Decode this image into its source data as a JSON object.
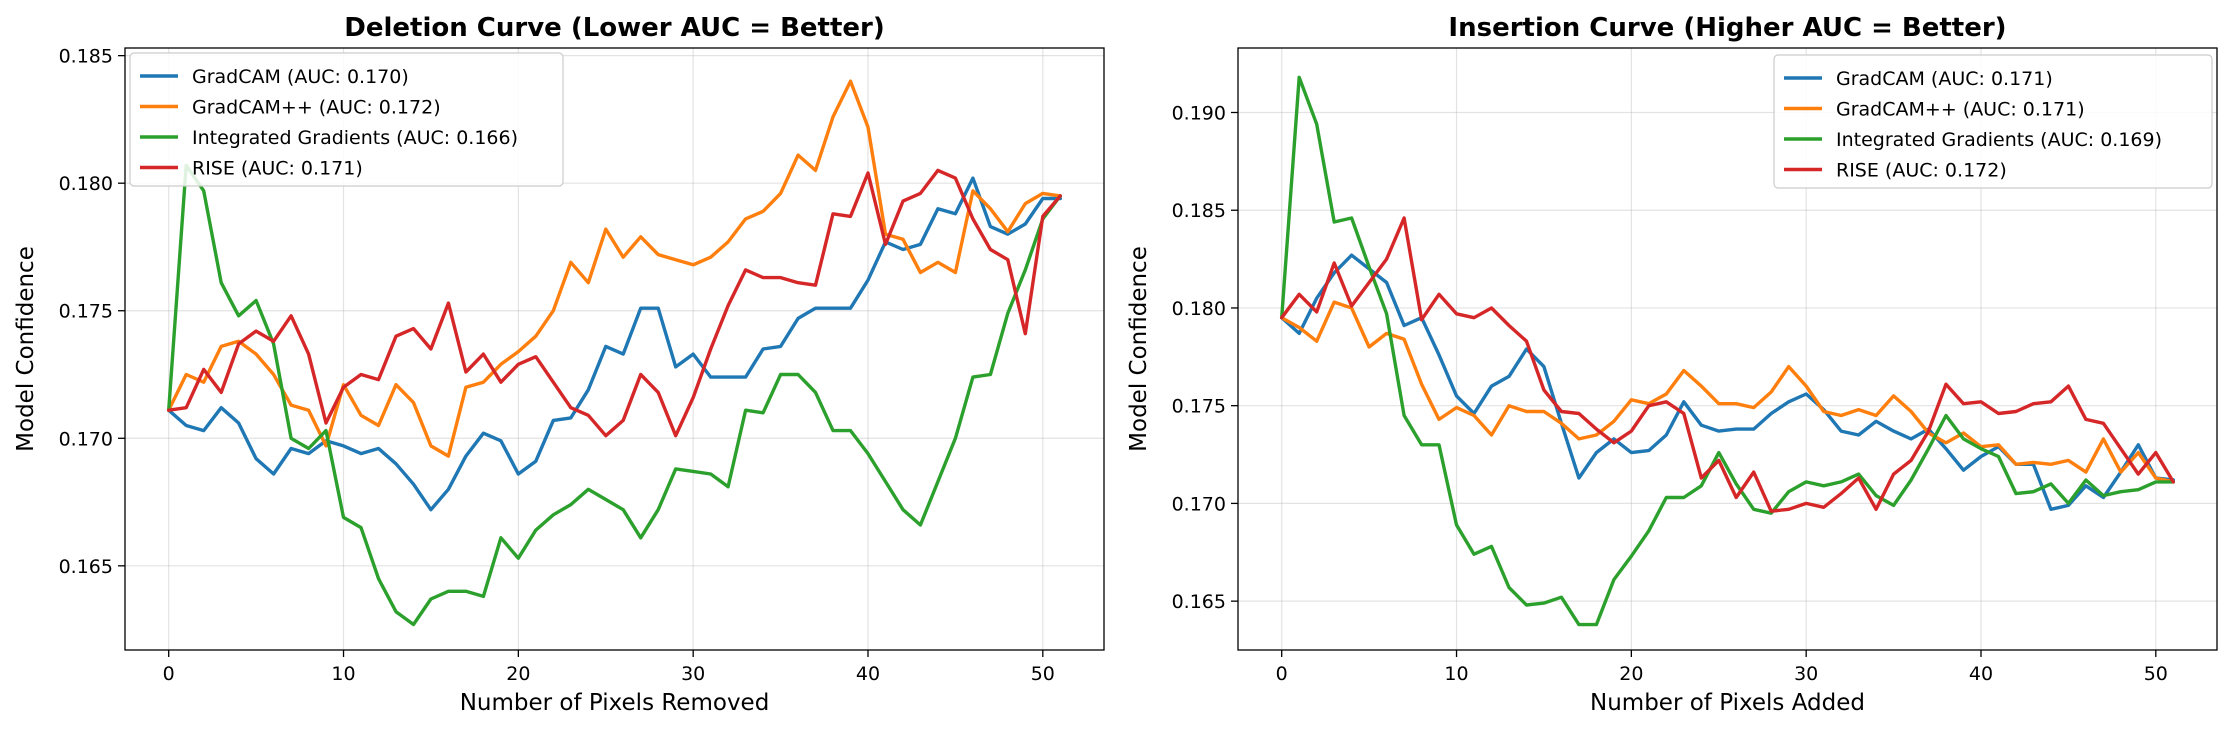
{
  "chart_data": [
    {
      "type": "line",
      "title": "Deletion Curve (Lower AUC = Better)",
      "xlabel": "Number of Pixels Removed",
      "ylabel": "Model Confidence",
      "xlim": [
        -2.5,
        53.5
      ],
      "ylim": [
        0.1617,
        0.1853
      ],
      "xticks": [
        0,
        10,
        20,
        30,
        40,
        50
      ],
      "yticks": [
        0.165,
        0.17,
        0.175,
        0.18,
        0.185
      ],
      "ytick_labels": [
        "0.165",
        "0.170",
        "0.175",
        "0.180",
        "0.185"
      ],
      "grid": true,
      "legend_position": "top-left",
      "x": [
        0,
        1,
        2,
        3,
        4,
        5,
        6,
        7,
        8,
        9,
        10,
        11,
        12,
        13,
        14,
        15,
        16,
        17,
        18,
        19,
        20,
        21,
        22,
        23,
        24,
        25,
        26,
        27,
        28,
        29,
        30,
        31,
        32,
        33,
        34,
        35,
        36,
        37,
        38,
        39,
        40,
        41,
        42,
        43,
        44,
        45,
        46,
        47,
        48,
        49,
        50,
        51
      ],
      "series": [
        {
          "name": "GradCAM (AUC: 0.170)",
          "color": "#1f77b4",
          "values": [
            0.1711,
            0.1705,
            0.1703,
            0.1712,
            0.1706,
            0.1692,
            0.1686,
            0.1696,
            0.1694,
            0.1699,
            0.1697,
            0.1694,
            0.1696,
            0.169,
            0.1682,
            0.1672,
            0.168,
            0.1693,
            0.1702,
            0.1699,
            0.1686,
            0.1691,
            0.1707,
            0.1708,
            0.1719,
            0.1736,
            0.1733,
            0.1751,
            0.1751,
            0.1728,
            0.1733,
            0.1724,
            0.1724,
            0.1724,
            0.1735,
            0.1736,
            0.1747,
            0.1751,
            0.1751,
            0.1751,
            0.1762,
            0.1777,
            0.1774,
            0.1776,
            0.179,
            0.1788,
            0.1802,
            0.1783,
            0.178,
            0.1784,
            0.1794,
            0.1794
          ]
        },
        {
          "name": "GradCAM++ (AUC: 0.172)",
          "color": "#ff7f0e",
          "values": [
            0.1711,
            0.1725,
            0.1722,
            0.1736,
            0.1738,
            0.1733,
            0.1725,
            0.1713,
            0.1711,
            0.1697,
            0.1721,
            0.1709,
            0.1705,
            0.1721,
            0.1714,
            0.1697,
            0.1693,
            0.172,
            0.1722,
            0.1729,
            0.1734,
            0.174,
            0.175,
            0.1769,
            0.1761,
            0.1782,
            0.1771,
            0.1779,
            0.1772,
            0.177,
            0.1768,
            0.1771,
            0.1777,
            0.1786,
            0.1789,
            0.1796,
            0.1811,
            0.1805,
            0.1826,
            0.184,
            0.1822,
            0.178,
            0.1778,
            0.1765,
            0.1769,
            0.1765,
            0.1797,
            0.179,
            0.1781,
            0.1792,
            0.1796,
            0.1795
          ]
        },
        {
          "name": "Integrated Gradients (AUC: 0.166)",
          "color": "#2ca02c",
          "values": [
            0.1711,
            0.1807,
            0.1797,
            0.1761,
            0.1748,
            0.1754,
            0.1737,
            0.17,
            0.1696,
            0.1703,
            0.1669,
            0.1665,
            0.1645,
            0.1632,
            0.1627,
            0.1637,
            0.164,
            0.164,
            0.1638,
            0.1661,
            0.1653,
            0.1664,
            0.167,
            0.1674,
            0.168,
            0.1676,
            0.1672,
            0.1661,
            0.1672,
            0.1688,
            0.1687,
            0.1686,
            0.1681,
            0.1711,
            0.171,
            0.1725,
            0.1725,
            0.1718,
            0.1703,
            0.1703,
            0.1694,
            0.1683,
            0.1672,
            0.1666,
            0.1683,
            0.17,
            0.1724,
            0.1725,
            0.1749,
            0.1766,
            0.1786,
            0.1795
          ]
        },
        {
          "name": "RISE (AUC: 0.171)",
          "color": "#d62728",
          "values": [
            0.1711,
            0.1712,
            0.1727,
            0.1718,
            0.1737,
            0.1742,
            0.1738,
            0.1748,
            0.1733,
            0.1706,
            0.172,
            0.1725,
            0.1723,
            0.174,
            0.1743,
            0.1735,
            0.1753,
            0.1726,
            0.1733,
            0.1722,
            0.1729,
            0.1732,
            0.1722,
            0.1712,
            0.1709,
            0.1701,
            0.1707,
            0.1725,
            0.1718,
            0.1701,
            0.1716,
            0.1735,
            0.1752,
            0.1766,
            0.1763,
            0.1763,
            0.1761,
            0.176,
            0.1788,
            0.1787,
            0.1804,
            0.1776,
            0.1793,
            0.1796,
            0.1805,
            0.1802,
            0.1786,
            0.1774,
            0.177,
            0.1741,
            0.1787,
            0.1795
          ]
        }
      ]
    },
    {
      "type": "line",
      "title": "Insertion Curve (Higher AUC = Better)",
      "xlabel": "Number of Pixels Added",
      "ylabel": "Model Confidence",
      "xlim": [
        -2.5,
        53.5
      ],
      "ylim": [
        0.1625,
        0.1933
      ],
      "xticks": [
        0,
        10,
        20,
        30,
        40,
        50
      ],
      "yticks": [
        0.165,
        0.17,
        0.175,
        0.18,
        0.185,
        0.19
      ],
      "ytick_labels": [
        "0.165",
        "0.170",
        "0.175",
        "0.180",
        "0.185",
        "0.190"
      ],
      "grid": true,
      "legend_position": "top-right",
      "x": [
        0,
        1,
        2,
        3,
        4,
        5,
        6,
        7,
        8,
        9,
        10,
        11,
        12,
        13,
        14,
        15,
        16,
        17,
        18,
        19,
        20,
        21,
        22,
        23,
        24,
        25,
        26,
        27,
        28,
        29,
        30,
        31,
        32,
        33,
        34,
        35,
        36,
        37,
        38,
        39,
        40,
        41,
        42,
        43,
        44,
        45,
        46,
        47,
        48,
        49,
        50,
        51
      ],
      "series": [
        {
          "name": "GradCAM (AUC: 0.171)",
          "color": "#1f77b4",
          "values": [
            0.1795,
            0.1787,
            0.1805,
            0.1818,
            0.1827,
            0.182,
            0.1813,
            0.1791,
            0.1795,
            0.1776,
            0.1755,
            0.1746,
            0.176,
            0.1765,
            0.1779,
            0.177,
            0.1741,
            0.1713,
            0.1726,
            0.1733,
            0.1726,
            0.1727,
            0.1735,
            0.1752,
            0.174,
            0.1737,
            0.1738,
            0.1738,
            0.1746,
            0.1752,
            0.1756,
            0.1748,
            0.1737,
            0.1735,
            0.1742,
            0.1737,
            0.1733,
            0.1738,
            0.1728,
            0.1717,
            0.1724,
            0.1729,
            0.172,
            0.172,
            0.1697,
            0.1699,
            0.1709,
            0.1703,
            0.1716,
            0.173,
            0.1713,
            0.1712
          ]
        },
        {
          "name": "GradCAM++ (AUC: 0.171)",
          "color": "#ff7f0e",
          "values": [
            0.1795,
            0.179,
            0.1783,
            0.1803,
            0.18,
            0.178,
            0.1787,
            0.1784,
            0.1761,
            0.1743,
            0.1749,
            0.1745,
            0.1735,
            0.175,
            0.1747,
            0.1747,
            0.1741,
            0.1733,
            0.1735,
            0.1742,
            0.1753,
            0.1751,
            0.1756,
            0.1768,
            0.176,
            0.1751,
            0.1751,
            0.1749,
            0.1757,
            0.177,
            0.176,
            0.1747,
            0.1745,
            0.1748,
            0.1745,
            0.1755,
            0.1747,
            0.1736,
            0.1731,
            0.1736,
            0.1729,
            0.173,
            0.172,
            0.1721,
            0.172,
            0.1722,
            0.1716,
            0.1733,
            0.1716,
            0.1726,
            0.1713,
            0.1711
          ]
        },
        {
          "name": "Integrated Gradients (AUC: 0.169)",
          "color": "#2ca02c",
          "values": [
            0.1795,
            0.1918,
            0.1894,
            0.1844,
            0.1846,
            0.1821,
            0.1797,
            0.1745,
            0.173,
            0.173,
            0.1689,
            0.1674,
            0.1678,
            0.1657,
            0.1648,
            0.1649,
            0.1652,
            0.1638,
            0.1638,
            0.1661,
            0.1673,
            0.1686,
            0.1703,
            0.1703,
            0.1709,
            0.1726,
            0.171,
            0.1697,
            0.1695,
            0.1706,
            0.1711,
            0.1709,
            0.1711,
            0.1715,
            0.1704,
            0.1699,
            0.1712,
            0.1728,
            0.1745,
            0.1733,
            0.1728,
            0.1724,
            0.1705,
            0.1706,
            0.171,
            0.17,
            0.1712,
            0.1704,
            0.1706,
            0.1707,
            0.1711,
            0.1711
          ]
        },
        {
          "name": "RISE (AUC: 0.172)",
          "color": "#d62728",
          "values": [
            0.1795,
            0.1807,
            0.1798,
            0.1823,
            0.1801,
            0.1813,
            0.1825,
            0.1846,
            0.1794,
            0.1807,
            0.1797,
            0.1795,
            0.18,
            0.1791,
            0.1783,
            0.1758,
            0.1747,
            0.1746,
            0.1738,
            0.1731,
            0.1737,
            0.175,
            0.1752,
            0.1746,
            0.1713,
            0.1722,
            0.1703,
            0.1716,
            0.1696,
            0.1697,
            0.17,
            0.1698,
            0.1705,
            0.1713,
            0.1697,
            0.1715,
            0.1722,
            0.1737,
            0.1761,
            0.1751,
            0.1752,
            0.1746,
            0.1747,
            0.1751,
            0.1752,
            0.176,
            0.1743,
            0.1741,
            0.1728,
            0.1715,
            0.1726,
            0.1711
          ]
        }
      ]
    }
  ]
}
